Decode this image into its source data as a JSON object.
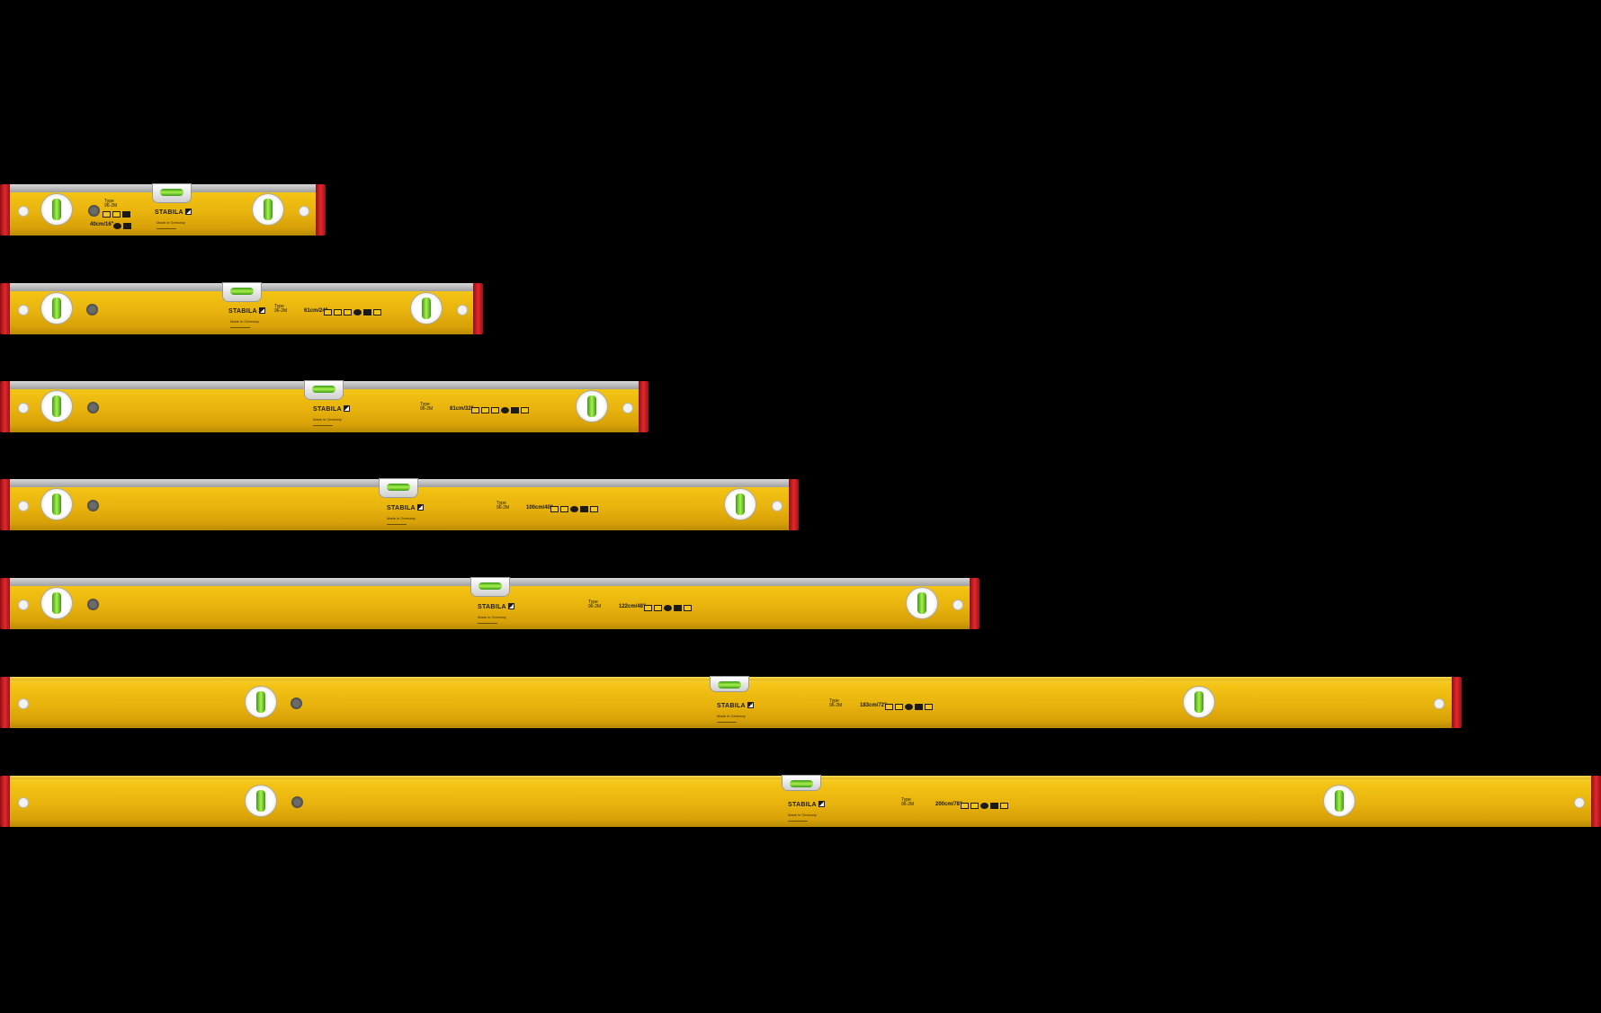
{
  "levels": [
    {
      "length_label": "40cm/16\"",
      "type_label": "96-2M",
      "brand": "STABILA",
      "made_in": "Made in Germany",
      "top_strip_color": "#bdbdbd",
      "body_color": "#f3c314",
      "cap_color": "#e2282e"
    },
    {
      "length_label": "61cm/24\"",
      "type_label": "96-2M",
      "brand": "STABILA",
      "made_in": "Made in Germany",
      "top_strip_color": "#bdbdbd",
      "body_color": "#f3c314",
      "cap_color": "#e2282e"
    },
    {
      "length_label": "81cm/32\"",
      "type_label": "96-2M",
      "brand": "STABILA",
      "made_in": "Made in Germany",
      "top_strip_color": "#bdbdbd",
      "body_color": "#f3c314",
      "cap_color": "#e2282e"
    },
    {
      "length_label": "100cm/40\"",
      "type_label": "96-2M",
      "brand": "STABILA",
      "made_in": "Made in Germany",
      "top_strip_color": "#bdbdbd",
      "body_color": "#f3c314",
      "cap_color": "#e2282e"
    },
    {
      "length_label": "122cm/48\"",
      "type_label": "96-2M",
      "brand": "STABILA",
      "made_in": "Made in Germany",
      "top_strip_color": "#bdbdbd",
      "body_color": "#f3c314",
      "cap_color": "#e2282e"
    },
    {
      "length_label": "183cm/72\"",
      "type_label": "96-2M",
      "brand": "STABILA",
      "made_in": "Made in Germany",
      "top_strip_color": "#f3c314",
      "body_color": "#f3c314",
      "cap_color": "#e2282e"
    },
    {
      "length_label": "200cm/78\"",
      "type_label": "96-2M",
      "brand": "STABILA",
      "made_in": "Made in Germany",
      "top_strip_color": "#f3c314",
      "body_color": "#f3c314",
      "cap_color": "#e2282e"
    }
  ]
}
